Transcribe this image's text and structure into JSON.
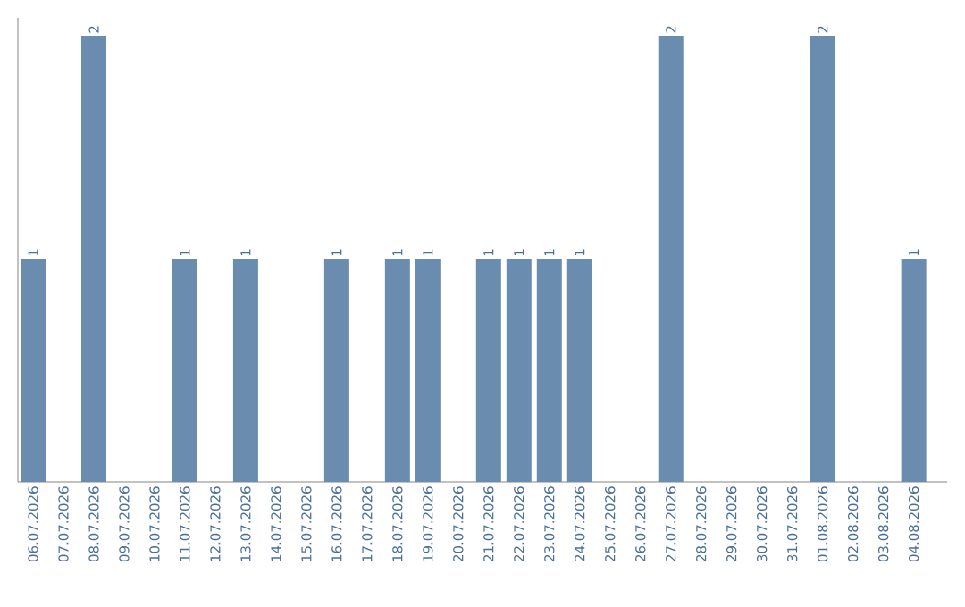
{
  "chart_data": {
    "type": "bar",
    "categories": [
      "06.07.2026",
      "07.07.2026",
      "08.07.2026",
      "09.07.2026",
      "10.07.2026",
      "11.07.2026",
      "12.07.2026",
      "13.07.2026",
      "14.07.2026",
      "15.07.2026",
      "16.07.2026",
      "17.07.2026",
      "18.07.2026",
      "19.07.2026",
      "20.07.2026",
      "21.07.2026",
      "22.07.2026",
      "23.07.2026",
      "24.07.2026",
      "25.07.2026",
      "26.07.2026",
      "27.07.2026",
      "28.07.2026",
      "29.07.2026",
      "30.07.2026",
      "31.07.2026",
      "01.08.2026",
      "02.08.2026",
      "03.08.2026",
      "04.08.2026"
    ],
    "values": [
      1,
      0,
      2,
      0,
      0,
      1,
      0,
      1,
      0,
      0,
      1,
      0,
      1,
      1,
      0,
      1,
      1,
      1,
      1,
      0,
      0,
      2,
      0,
      0,
      0,
      0,
      2,
      0,
      0,
      1
    ],
    "value_labels": [
      "1",
      null,
      "2",
      null,
      null,
      "1",
      null,
      "1",
      null,
      null,
      "1",
      null,
      "1",
      "1",
      null,
      "1",
      "1",
      "1",
      "1",
      null,
      null,
      "2",
      null,
      null,
      null,
      null,
      "2",
      null,
      null,
      "1"
    ],
    "color": "#6a8caf",
    "ylim": [
      0,
      2.08
    ],
    "tick_labels": "x",
    "grid": false
  }
}
